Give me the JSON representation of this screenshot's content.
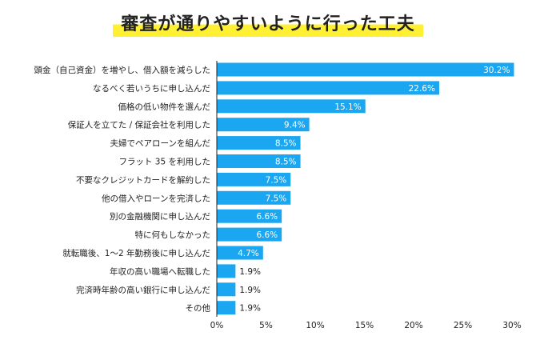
{
  "title": "審査が通りやすいように行った工夫",
  "colors": {
    "bar": "#1aa6f0",
    "highlight": "#fff033",
    "axis": "#222222",
    "grid": "#dddddd"
  },
  "chart_data": {
    "type": "bar",
    "orientation": "horizontal",
    "title": "審査が通りやすいように行った工夫",
    "categories": [
      "頭金（自己資金）を増やし、借入額を減らした",
      "なるべく若いうちに申し込んだ",
      "価格の低い物件を選んだ",
      "保証人を立てた / 保証会社を利用した",
      "夫婦でペアローンを組んだ",
      "フラット 35 を利用した",
      "不要なクレジットカードを解約した",
      "他の借入やローンを完済した",
      "別の金融機関に申し込んだ",
      "特に何もしなかった",
      "就転職後、1～2 年勤務後に申し込んだ",
      "年収の高い職場へ転職した",
      "完済時年齢の高い銀行に申し込んだ",
      "その他"
    ],
    "values": [
      30.2,
      22.6,
      15.1,
      9.4,
      8.5,
      8.5,
      7.5,
      7.5,
      6.6,
      6.6,
      4.7,
      1.9,
      1.9,
      1.9
    ],
    "value_labels": [
      "30.2%",
      "22.6%",
      "15.1%",
      "9.4%",
      "8.5%",
      "8.5%",
      "7.5%",
      "7.5%",
      "6.6%",
      "6.6%",
      "4.7%",
      "1.9%",
      "1.9%",
      "1.9%"
    ],
    "xlim": [
      0,
      30
    ],
    "xticks": [
      0,
      5,
      10,
      15,
      20,
      25,
      30
    ],
    "xtick_labels": [
      "0%",
      "5%",
      "10%",
      "15%",
      "20%",
      "25%",
      "30%"
    ],
    "grid": false
  }
}
